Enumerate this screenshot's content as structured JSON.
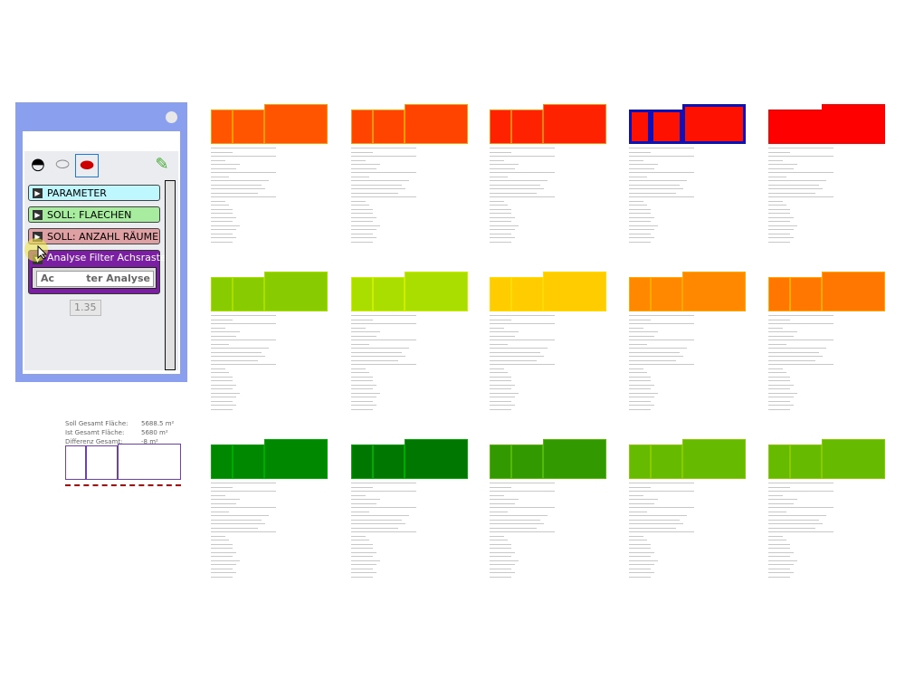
{
  "panel": {
    "tools": [
      "layer-icon",
      "cylinder-outline-icon",
      "cylinder-red-icon",
      "pencil-icon"
    ],
    "rows": [
      {
        "label": "PARAMETER",
        "color": "#bff7ff"
      },
      {
        "label": "SOLL: FLAECHEN",
        "color": "#a8eca0"
      },
      {
        "label": "SOLL: ANZAHL RÄUME",
        "color": "#dfa0a4"
      },
      {
        "label": "Analyse Filter Achsraster",
        "color": "#7a1fa2"
      }
    ],
    "button_left": "Ac",
    "button_right": "ter Analyse",
    "tooltip": "1.35"
  },
  "summary": {
    "soll_label": "Soll Gesamt Fläche:",
    "soll_value": "5688.5 m²",
    "ist_label": "Ist Gesamt Fläche:",
    "ist_value": "5680 m²",
    "diff_label": "Differenz Gesamt:",
    "diff_value": "-8 m²"
  },
  "variants": [
    {
      "color": "#ff5500",
      "border": "#ff9900"
    },
    {
      "color": "#ff4400",
      "border": "#ff9900"
    },
    {
      "color": "#ff2200",
      "border": "#ff8800"
    },
    {
      "color": "#ff1100",
      "border": "#1010bb",
      "selected": true
    },
    {
      "color": "#ff0000",
      "border": "#ff0000"
    },
    {
      "color": "#88cc00",
      "border": "#aadd00"
    },
    {
      "color": "#aadd00",
      "border": "#ccee00"
    },
    {
      "color": "#ffcc00",
      "border": "#ffdd00"
    },
    {
      "color": "#ff8800",
      "border": "#ffaa00"
    },
    {
      "color": "#ff7700",
      "border": "#ffaa00"
    },
    {
      "color": "#008800",
      "border": "#00aa00"
    },
    {
      "color": "#007700",
      "border": "#00aa00"
    },
    {
      "color": "#339900",
      "border": "#55bb00"
    },
    {
      "color": "#66bb00",
      "border": "#88cc00"
    },
    {
      "color": "#66bb00",
      "border": "#88cc00"
    }
  ]
}
